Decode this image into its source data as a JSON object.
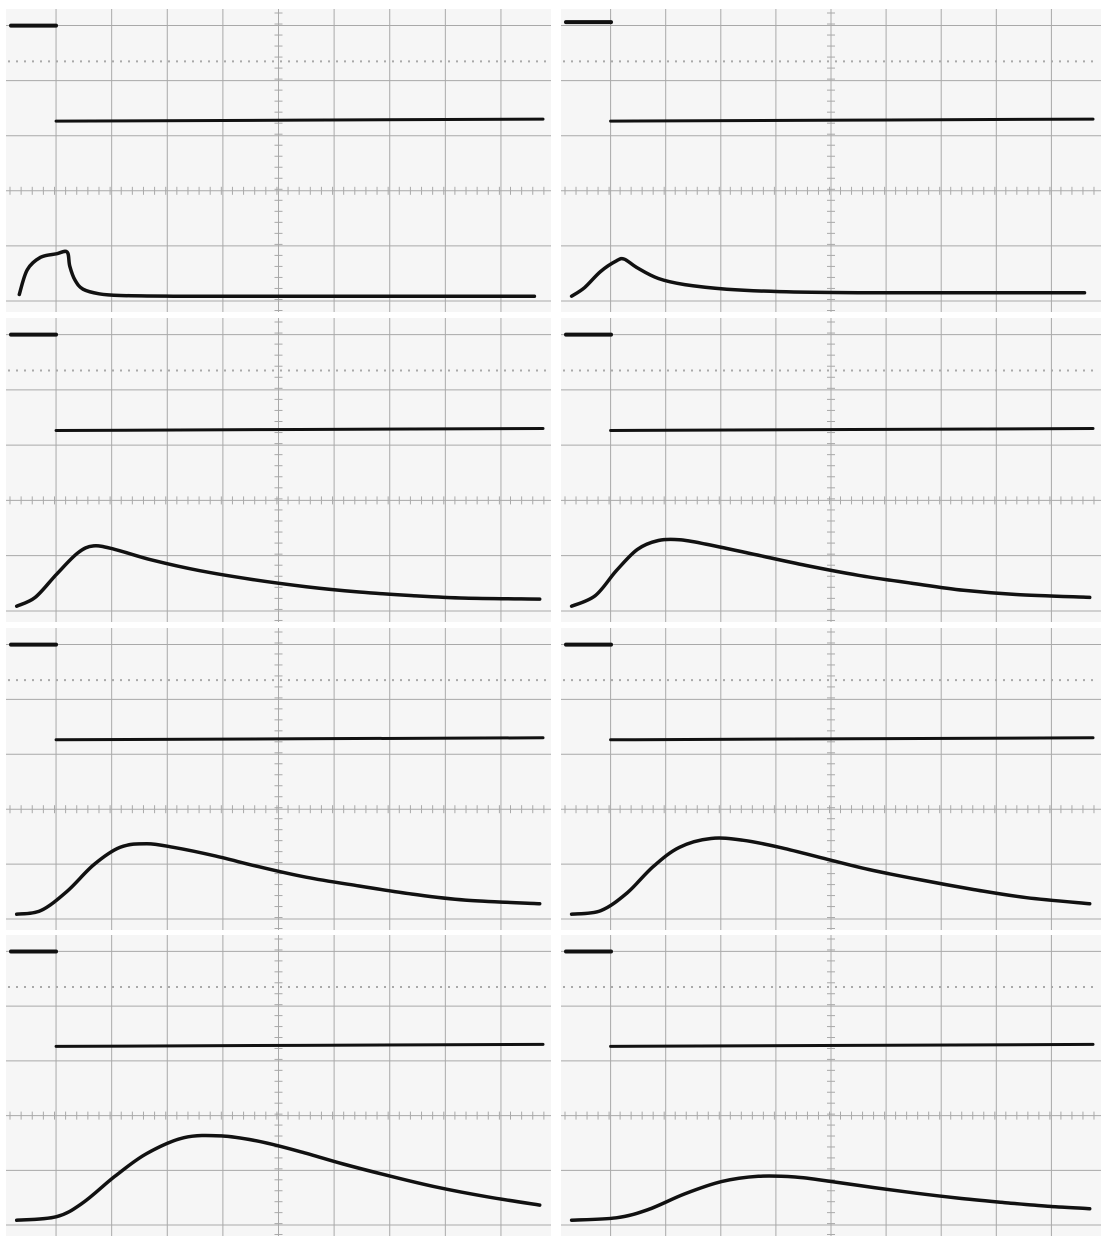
{
  "colors": {
    "background": "#ffffff",
    "screen": "#f6f6f6",
    "grid": "#a9a9a9",
    "trace": "#111111"
  },
  "chart_data": [
    {
      "type": "line",
      "grid": true,
      "xlim": [
        0,
        10
      ],
      "ylim": [
        0,
        8
      ],
      "marker_level": 7.7,
      "series": [
        {
          "x": [
            0.0,
            9.0
          ],
          "y": [
            5.0,
            5.0
          ]
        },
        {
          "x": [
            0.1,
            0.25,
            0.5,
            0.8,
            1.0,
            1.05,
            1.15,
            1.3,
            1.6,
            2.0,
            3.0,
            4.5,
            6.0,
            8.0,
            9.8
          ],
          "y": [
            0.1,
            0.8,
            1.15,
            1.25,
            1.3,
            0.9,
            0.5,
            0.25,
            0.12,
            0.07,
            0.05,
            0.05,
            0.05,
            0.05,
            0.05
          ]
        }
      ]
    },
    {
      "type": "line",
      "grid": true,
      "xlim": [
        0,
        10
      ],
      "ylim": [
        0,
        8
      ],
      "marker_level": 7.8,
      "series": [
        {
          "x": [
            0.0,
            9.0
          ],
          "y": [
            5.0,
            5.0
          ]
        },
        {
          "x": [
            0.05,
            0.3,
            0.6,
            0.9,
            1.05,
            1.3,
            1.7,
            2.2,
            3.0,
            4.0,
            5.5,
            7.0,
            9.8
          ],
          "y": [
            0.05,
            0.3,
            0.75,
            1.05,
            1.1,
            0.85,
            0.55,
            0.38,
            0.25,
            0.18,
            0.15,
            0.15,
            0.15
          ]
        }
      ]
    },
    {
      "type": "line",
      "grid": true,
      "xlim": [
        0,
        10
      ],
      "ylim": [
        0,
        8
      ],
      "marker_level": 7.7,
      "series": [
        {
          "x": [
            0.0,
            9.0
          ],
          "y": [
            5.0,
            5.0
          ]
        },
        {
          "x": [
            0.05,
            0.4,
            0.8,
            1.2,
            1.5,
            1.9,
            2.6,
            3.5,
            4.5,
            5.5,
            6.5,
            7.5,
            8.5,
            9.9
          ],
          "y": [
            0.05,
            0.3,
            0.95,
            1.55,
            1.75,
            1.65,
            1.35,
            1.05,
            0.8,
            0.6,
            0.45,
            0.35,
            0.28,
            0.25
          ]
        }
      ]
    },
    {
      "type": "line",
      "grid": true,
      "xlim": [
        0,
        10
      ],
      "ylim": [
        0,
        8
      ],
      "marker_level": 7.7,
      "series": [
        {
          "x": [
            0.0,
            9.0
          ],
          "y": [
            5.0,
            5.0
          ]
        },
        {
          "x": [
            0.05,
            0.5,
            0.9,
            1.3,
            1.7,
            2.1,
            2.6,
            3.4,
            4.5,
            5.5,
            6.5,
            7.5,
            8.5,
            9.9
          ],
          "y": [
            0.05,
            0.35,
            1.05,
            1.65,
            1.9,
            1.92,
            1.8,
            1.55,
            1.2,
            0.92,
            0.7,
            0.5,
            0.38,
            0.3
          ]
        }
      ]
    },
    {
      "type": "line",
      "grid": true,
      "xlim": [
        0,
        10
      ],
      "ylim": [
        0,
        8
      ],
      "marker_level": 7.7,
      "series": [
        {
          "x": [
            0.0,
            9.0
          ],
          "y": [
            5.0,
            5.0
          ]
        },
        {
          "x": [
            0.05,
            0.5,
            1.0,
            1.5,
            2.0,
            2.5,
            3.0,
            3.8,
            4.6,
            5.5,
            6.5,
            7.5,
            8.5,
            9.9
          ],
          "y": [
            0.05,
            0.15,
            0.7,
            1.45,
            1.95,
            2.05,
            1.95,
            1.7,
            1.4,
            1.1,
            0.85,
            0.62,
            0.45,
            0.35
          ]
        }
      ]
    },
    {
      "type": "line",
      "grid": true,
      "xlim": [
        0,
        10
      ],
      "ylim": [
        0,
        8
      ],
      "marker_level": 7.7,
      "series": [
        {
          "x": [
            0.0,
            9.0
          ],
          "y": [
            5.0,
            5.0
          ]
        },
        {
          "x": [
            0.05,
            0.6,
            1.1,
            1.6,
            2.1,
            2.7,
            3.3,
            4.0,
            4.8,
            5.7,
            6.7,
            7.7,
            8.7,
            9.9
          ],
          "y": [
            0.05,
            0.15,
            0.65,
            1.4,
            1.95,
            2.2,
            2.15,
            1.95,
            1.65,
            1.32,
            1.02,
            0.75,
            0.52,
            0.35
          ]
        }
      ]
    },
    {
      "type": "line",
      "grid": true,
      "xlim": [
        0,
        10
      ],
      "ylim": [
        0,
        8
      ],
      "marker_level": 7.7,
      "series": [
        {
          "x": [
            0.0,
            9.0
          ],
          "y": [
            5.0,
            5.0
          ]
        },
        {
          "x": [
            0.05,
            0.8,
            1.3,
            1.9,
            2.5,
            3.2,
            3.9,
            4.6,
            5.4,
            6.2,
            7.1,
            8.0,
            8.9,
            9.9
          ],
          "y": [
            0.05,
            0.15,
            0.55,
            1.3,
            1.95,
            2.4,
            2.45,
            2.3,
            2.0,
            1.65,
            1.3,
            0.98,
            0.72,
            0.48
          ]
        }
      ]
    },
    {
      "type": "line",
      "grid": true,
      "xlim": [
        0,
        10
      ],
      "ylim": [
        0,
        8
      ],
      "marker_level": 7.7,
      "series": [
        {
          "x": [
            0.0,
            9.0
          ],
          "y": [
            5.0,
            5.0
          ]
        },
        {
          "x": [
            0.05,
            0.9,
            1.5,
            2.2,
            2.9,
            3.6,
            4.3,
            5.0,
            5.8,
            6.6,
            7.4,
            8.3,
            9.1,
            9.9
          ],
          "y": [
            0.05,
            0.12,
            0.35,
            0.8,
            1.15,
            1.3,
            1.28,
            1.15,
            0.98,
            0.82,
            0.68,
            0.55,
            0.45,
            0.38
          ]
        }
      ]
    }
  ]
}
